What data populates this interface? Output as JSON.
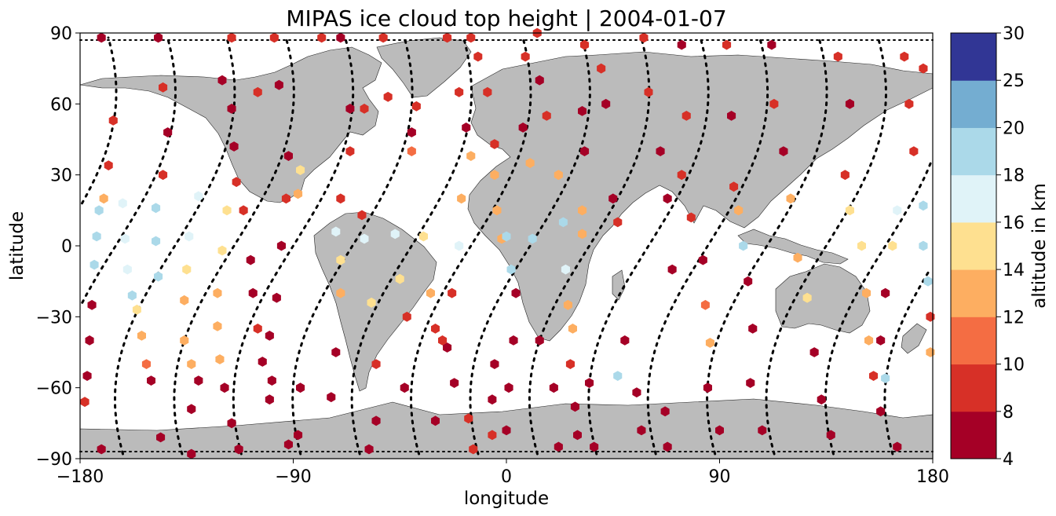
{
  "chart_data": {
    "type": "scatter",
    "title": "MIPAS ice cloud top height | 2004-01-07",
    "xlabel": "longitude",
    "ylabel": "latitude",
    "xlim": [
      -180,
      180
    ],
    "ylim": [
      -90,
      90
    ],
    "xticks": [
      "−180",
      "−90",
      "0",
      "90",
      "180"
    ],
    "yticks": [
      "−90",
      "−60",
      "−30",
      "0",
      "30",
      "60",
      "90"
    ],
    "colorbar": {
      "label": "altitude in km",
      "bounds": [
        4,
        8,
        10,
        12,
        14,
        16,
        18,
        20,
        25,
        30
      ],
      "tick_labels": [
        "4",
        "8",
        "10",
        "12",
        "14",
        "16",
        "18",
        "20",
        "25",
        "30"
      ],
      "colors": [
        "#a50026",
        "#d73027",
        "#f46d43",
        "#fdae61",
        "#fee090",
        "#e0f3f8",
        "#abd9e9",
        "#74add1",
        "#313695"
      ]
    },
    "land_color": "#bbbbbb",
    "track_style": "black dotted orbit tracks",
    "points": [
      {
        "lon": -171,
        "lat": 88,
        "alt": 5
      },
      {
        "lon": -166,
        "lat": 53,
        "alt": 9
      },
      {
        "lon": -168,
        "lat": 34,
        "alt": 9
      },
      {
        "lon": -170,
        "lat": 20,
        "alt": 13
      },
      {
        "lon": -172,
        "lat": 15,
        "alt": 18
      },
      {
        "lon": -173,
        "lat": 4,
        "alt": 18
      },
      {
        "lon": -174,
        "lat": -8,
        "alt": 18
      },
      {
        "lon": -175,
        "lat": -25,
        "alt": 5
      },
      {
        "lon": -176,
        "lat": -40,
        "alt": 5
      },
      {
        "lon": -177,
        "lat": -55,
        "alt": 5
      },
      {
        "lon": -178,
        "lat": -66,
        "alt": 9
      },
      {
        "lon": -171,
        "lat": -86,
        "alt": 5
      },
      {
        "lon": -162,
        "lat": 18,
        "alt": 17
      },
      {
        "lon": -161,
        "lat": 3,
        "alt": 17
      },
      {
        "lon": -160,
        "lat": -10,
        "alt": 17
      },
      {
        "lon": -158,
        "lat": -21,
        "alt": 18
      },
      {
        "lon": -156,
        "lat": -27,
        "alt": 15
      },
      {
        "lon": -154,
        "lat": -38,
        "alt": 13
      },
      {
        "lon": -152,
        "lat": -50,
        "alt": 11
      },
      {
        "lon": -150,
        "lat": -57,
        "alt": 5
      },
      {
        "lon": -146,
        "lat": -81,
        "alt": 5
      },
      {
        "lon": -147,
        "lat": 88,
        "alt": 5
      },
      {
        "lon": -145,
        "lat": 67,
        "alt": 9
      },
      {
        "lon": -143,
        "lat": 48,
        "alt": 5
      },
      {
        "lon": -145,
        "lat": 30,
        "alt": 9
      },
      {
        "lon": -148,
        "lat": 16,
        "alt": 18
      },
      {
        "lon": -148,
        "lat": 2,
        "alt": 18
      },
      {
        "lon": -147,
        "lat": -13,
        "alt": 18
      },
      {
        "lon": -130,
        "lat": 21,
        "alt": 17
      },
      {
        "lon": -134,
        "lat": 4,
        "alt": 17
      },
      {
        "lon": -135,
        "lat": -10,
        "alt": 15
      },
      {
        "lon": -136,
        "lat": -23,
        "alt": 13
      },
      {
        "lon": -136,
        "lat": -40,
        "alt": 13
      },
      {
        "lon": -133,
        "lat": -50,
        "alt": 13
      },
      {
        "lon": -130,
        "lat": -57,
        "alt": 5
      },
      {
        "lon": -133,
        "lat": -69,
        "alt": 5
      },
      {
        "lon": -133,
        "lat": -88,
        "alt": 5
      },
      {
        "lon": -120,
        "lat": 70,
        "alt": 5
      },
      {
        "lon": -116,
        "lat": 58,
        "alt": 5
      },
      {
        "lon": -115,
        "lat": 42,
        "alt": 5
      },
      {
        "lon": -114,
        "lat": 27,
        "alt": 9
      },
      {
        "lon": -118,
        "lat": 15,
        "alt": 15
      },
      {
        "lon": -120,
        "lat": -2,
        "alt": 15
      },
      {
        "lon": -122,
        "lat": -20,
        "alt": 13
      },
      {
        "lon": -122,
        "lat": -34,
        "alt": 13
      },
      {
        "lon": -121,
        "lat": -48,
        "alt": 13
      },
      {
        "lon": -119,
        "lat": -60,
        "alt": 5
      },
      {
        "lon": -116,
        "lat": -75,
        "alt": 5
      },
      {
        "lon": -113,
        "lat": -86,
        "alt": 5
      },
      {
        "lon": -116,
        "lat": 88,
        "alt": 9
      },
      {
        "lon": -105,
        "lat": 65,
        "alt": 9
      },
      {
        "lon": -111,
        "lat": 15,
        "alt": 9
      },
      {
        "lon": -108,
        "lat": -6,
        "alt": 5
      },
      {
        "lon": -107,
        "lat": -20,
        "alt": 5
      },
      {
        "lon": -105,
        "lat": -35,
        "alt": 9
      },
      {
        "lon": -103,
        "lat": -49,
        "alt": 5
      },
      {
        "lon": -100,
        "lat": -65,
        "alt": 5
      },
      {
        "lon": -98,
        "lat": 88,
        "alt": 9
      },
      {
        "lon": -96,
        "lat": 68,
        "alt": 5
      },
      {
        "lon": -92,
        "lat": 38,
        "alt": 5
      },
      {
        "lon": -93,
        "lat": 20,
        "alt": 9
      },
      {
        "lon": -95,
        "lat": 0,
        "alt": 5
      },
      {
        "lon": -97,
        "lat": -22,
        "alt": 5
      },
      {
        "lon": -100,
        "lat": -38,
        "alt": 5
      },
      {
        "lon": -99,
        "lat": -57,
        "alt": 5
      },
      {
        "lon": -92,
        "lat": -84,
        "alt": 5
      },
      {
        "lon": -87,
        "lat": 32,
        "alt": 15
      },
      {
        "lon": -88,
        "lat": 22,
        "alt": 13
      },
      {
        "lon": -87,
        "lat": -60,
        "alt": 5
      },
      {
        "lon": -88,
        "lat": -80,
        "alt": 5
      },
      {
        "lon": -70,
        "lat": 88,
        "alt": 5
      },
      {
        "lon": -66,
        "lat": 58,
        "alt": 5
      },
      {
        "lon": -66,
        "lat": 40,
        "alt": 9
      },
      {
        "lon": -70,
        "lat": 20,
        "alt": 9
      },
      {
        "lon": -72,
        "lat": 6,
        "alt": 17
      },
      {
        "lon": -70,
        "lat": -6,
        "alt": 15
      },
      {
        "lon": -70,
        "lat": -20,
        "alt": 13
      },
      {
        "lon": -72,
        "lat": -45,
        "alt": 5
      },
      {
        "lon": -74,
        "lat": -64,
        "alt": 5
      },
      {
        "lon": -78,
        "lat": 88,
        "alt": 9
      },
      {
        "lon": -60,
        "lat": 58,
        "alt": 9
      },
      {
        "lon": -61,
        "lat": 13,
        "alt": 9
      },
      {
        "lon": -60,
        "lat": 3,
        "alt": 17
      },
      {
        "lon": -57,
        "lat": -24,
        "alt": 15
      },
      {
        "lon": -55,
        "lat": -50,
        "alt": 9
      },
      {
        "lon": -55,
        "lat": -74,
        "alt": 5
      },
      {
        "lon": -58,
        "lat": -86,
        "alt": 5
      },
      {
        "lon": -52,
        "lat": 88,
        "alt": 9
      },
      {
        "lon": -50,
        "lat": 63,
        "alt": 9
      },
      {
        "lon": -47,
        "lat": 5,
        "alt": 17
      },
      {
        "lon": -45,
        "lat": -14,
        "alt": 15
      },
      {
        "lon": -42,
        "lat": -30,
        "alt": 9
      },
      {
        "lon": -43,
        "lat": -60,
        "alt": 5
      },
      {
        "lon": -38,
        "lat": 59,
        "alt": 9
      },
      {
        "lon": -40,
        "lat": 48,
        "alt": 5
      },
      {
        "lon": -40,
        "lat": 40,
        "alt": 11
      },
      {
        "lon": -35,
        "lat": 4,
        "alt": 15
      },
      {
        "lon": -32,
        "lat": -20,
        "alt": 13
      },
      {
        "lon": -30,
        "lat": -35,
        "alt": 9
      },
      {
        "lon": -30,
        "lat": -74,
        "alt": 5
      },
      {
        "lon": -25,
        "lat": 88,
        "alt": 9
      },
      {
        "lon": -25,
        "lat": -43,
        "alt": 5
      },
      {
        "lon": -22,
        "lat": -58,
        "alt": 5
      },
      {
        "lon": -20,
        "lat": 65,
        "alt": 9
      },
      {
        "lon": -17,
        "lat": 50,
        "alt": 5
      },
      {
        "lon": -15,
        "lat": 38,
        "alt": 13
      },
      {
        "lon": -19,
        "lat": 20,
        "alt": 13
      },
      {
        "lon": -20,
        "lat": 0,
        "alt": 17
      },
      {
        "lon": -23,
        "lat": -20,
        "alt": 9
      },
      {
        "lon": -27,
        "lat": -40,
        "alt": 9
      },
      {
        "lon": -16,
        "lat": -73,
        "alt": 9
      },
      {
        "lon": -14,
        "lat": -86,
        "alt": 9
      },
      {
        "lon": -12,
        "lat": 80,
        "alt": 9
      },
      {
        "lon": -8,
        "lat": 65,
        "alt": 9
      },
      {
        "lon": -5,
        "lat": 43,
        "alt": 9
      },
      {
        "lon": -5,
        "lat": 30,
        "alt": 13
      },
      {
        "lon": -4,
        "lat": 15,
        "alt": 13
      },
      {
        "lon": -2,
        "lat": 3,
        "alt": 13
      },
      {
        "lon": -5,
        "lat": -50,
        "alt": 5
      },
      {
        "lon": -6,
        "lat": -65,
        "alt": 5
      },
      {
        "lon": -6,
        "lat": -80,
        "alt": 9
      },
      {
        "lon": -15,
        "lat": 88,
        "alt": 9
      },
      {
        "lon": 0,
        "lat": 4,
        "alt": 18
      },
      {
        "lon": 2,
        "lat": -10,
        "alt": 18
      },
      {
        "lon": 4,
        "lat": -20,
        "alt": 5
      },
      {
        "lon": 3,
        "lat": -40,
        "alt": 5
      },
      {
        "lon": 1,
        "lat": -60,
        "alt": 5
      },
      {
        "lon": 0,
        "lat": -78,
        "alt": 5
      },
      {
        "lon": 8,
        "lat": 80,
        "alt": 9
      },
      {
        "lon": 7,
        "lat": 50,
        "alt": 5
      },
      {
        "lon": 10,
        "lat": 35,
        "alt": 13
      },
      {
        "lon": 13,
        "lat": 90,
        "alt": 9
      },
      {
        "lon": 11,
        "lat": 3,
        "alt": 18
      },
      {
        "lon": 14,
        "lat": -40,
        "alt": 5
      },
      {
        "lon": 20,
        "lat": -60,
        "alt": 5
      },
      {
        "lon": 22,
        "lat": -85,
        "alt": 5
      },
      {
        "lon": 14,
        "lat": 70,
        "alt": 5
      },
      {
        "lon": 17,
        "lat": 55,
        "alt": 9
      },
      {
        "lon": 22,
        "lat": 30,
        "alt": 13
      },
      {
        "lon": 24,
        "lat": 10,
        "alt": 18
      },
      {
        "lon": 25,
        "lat": -10,
        "alt": 17
      },
      {
        "lon": 26,
        "lat": -25,
        "alt": 13
      },
      {
        "lon": 28,
        "lat": -35,
        "alt": 13
      },
      {
        "lon": 27,
        "lat": -50,
        "alt": 9
      },
      {
        "lon": 29,
        "lat": -68,
        "alt": 5
      },
      {
        "lon": 30,
        "lat": -80,
        "alt": 5
      },
      {
        "lon": 33,
        "lat": 85,
        "alt": 9
      },
      {
        "lon": 32,
        "lat": 57,
        "alt": 5
      },
      {
        "lon": 33,
        "lat": 40,
        "alt": 5
      },
      {
        "lon": 32,
        "lat": 15,
        "alt": 13
      },
      {
        "lon": 32,
        "lat": 5,
        "alt": 13
      },
      {
        "lon": 35,
        "lat": -58,
        "alt": 5
      },
      {
        "lon": 37,
        "lat": -85,
        "alt": 5
      },
      {
        "lon": 40,
        "lat": 75,
        "alt": 9
      },
      {
        "lon": 42,
        "lat": 60,
        "alt": 5
      },
      {
        "lon": 45,
        "lat": 20,
        "alt": 5
      },
      {
        "lon": 47,
        "lat": 10,
        "alt": 9
      },
      {
        "lon": 47,
        "lat": -55,
        "alt": 18
      },
      {
        "lon": 50,
        "lat": -40,
        "alt": 5
      },
      {
        "lon": 55,
        "lat": -62,
        "alt": 5
      },
      {
        "lon": 57,
        "lat": -78,
        "alt": 5
      },
      {
        "lon": 58,
        "lat": 88,
        "alt": 9
      },
      {
        "lon": 60,
        "lat": 65,
        "alt": 9
      },
      {
        "lon": 65,
        "lat": 40,
        "alt": 5
      },
      {
        "lon": 68,
        "lat": 20,
        "alt": 5
      },
      {
        "lon": 70,
        "lat": -10,
        "alt": 5
      },
      {
        "lon": 67,
        "lat": -70,
        "alt": 5
      },
      {
        "lon": 68,
        "lat": -85,
        "alt": 5
      },
      {
        "lon": 74,
        "lat": 85,
        "alt": 5
      },
      {
        "lon": 76,
        "lat": 55,
        "alt": 9
      },
      {
        "lon": 74,
        "lat": 30,
        "alt": 9
      },
      {
        "lon": 78,
        "lat": 12,
        "alt": 9
      },
      {
        "lon": 83,
        "lat": -6,
        "alt": 5
      },
      {
        "lon": 84,
        "lat": -25,
        "alt": 11
      },
      {
        "lon": 86,
        "lat": -41,
        "alt": 13
      },
      {
        "lon": 85,
        "lat": -60,
        "alt": 5
      },
      {
        "lon": 90,
        "lat": -78,
        "alt": 5
      },
      {
        "lon": 93,
        "lat": 85,
        "alt": 9
      },
      {
        "lon": 95,
        "lat": 55,
        "alt": 5
      },
      {
        "lon": 96,
        "lat": 25,
        "alt": 9
      },
      {
        "lon": 98,
        "lat": 15,
        "alt": 13
      },
      {
        "lon": 100,
        "lat": 0,
        "alt": 18
      },
      {
        "lon": 102,
        "lat": -15,
        "alt": 5
      },
      {
        "lon": 104,
        "lat": -35,
        "alt": 5
      },
      {
        "lon": 103,
        "lat": -58,
        "alt": 5
      },
      {
        "lon": 108,
        "lat": -78,
        "alt": 5
      },
      {
        "lon": 112,
        "lat": 85,
        "alt": 5
      },
      {
        "lon": 113,
        "lat": 60,
        "alt": 9
      },
      {
        "lon": 117,
        "lat": 40,
        "alt": 5
      },
      {
        "lon": 120,
        "lat": 20,
        "alt": 13
      },
      {
        "lon": 123,
        "lat": -5,
        "alt": 13
      },
      {
        "lon": 127,
        "lat": -22,
        "alt": 15
      },
      {
        "lon": 130,
        "lat": -45,
        "alt": 5
      },
      {
        "lon": 133,
        "lat": -65,
        "alt": 5
      },
      {
        "lon": 137,
        "lat": -80,
        "alt": 5
      },
      {
        "lon": 140,
        "lat": 80,
        "alt": 9
      },
      {
        "lon": 145,
        "lat": 60,
        "alt": 5
      },
      {
        "lon": 143,
        "lat": 30,
        "alt": 9
      },
      {
        "lon": 145,
        "lat": 15,
        "alt": 15
      },
      {
        "lon": 150,
        "lat": 0,
        "alt": 15
      },
      {
        "lon": 152,
        "lat": -20,
        "alt": 13
      },
      {
        "lon": 153,
        "lat": -40,
        "alt": 13
      },
      {
        "lon": 155,
        "lat": -55,
        "alt": 9
      },
      {
        "lon": 158,
        "lat": -70,
        "alt": 5
      },
      {
        "lon": 168,
        "lat": 80,
        "alt": 9
      },
      {
        "lon": 170,
        "lat": 60,
        "alt": 9
      },
      {
        "lon": 172,
        "lat": 40,
        "alt": 9
      },
      {
        "lon": 165,
        "lat": 15,
        "alt": 17
      },
      {
        "lon": 163,
        "lat": 0,
        "alt": 15
      },
      {
        "lon": 160,
        "lat": -20,
        "alt": 5
      },
      {
        "lon": 158,
        "lat": -40,
        "alt": 5
      },
      {
        "lon": 160,
        "lat": -56,
        "alt": 18
      },
      {
        "lon": 165,
        "lat": -85,
        "alt": 5
      },
      {
        "lon": 176,
        "lat": 17,
        "alt": 18
      },
      {
        "lon": 176,
        "lat": 0,
        "alt": 18
      },
      {
        "lon": 178,
        "lat": -15,
        "alt": 18
      },
      {
        "lon": 179,
        "lat": -30,
        "alt": 9
      },
      {
        "lon": 179,
        "lat": -45,
        "alt": 13
      },
      {
        "lon": 176,
        "lat": 75,
        "alt": 9
      }
    ]
  }
}
